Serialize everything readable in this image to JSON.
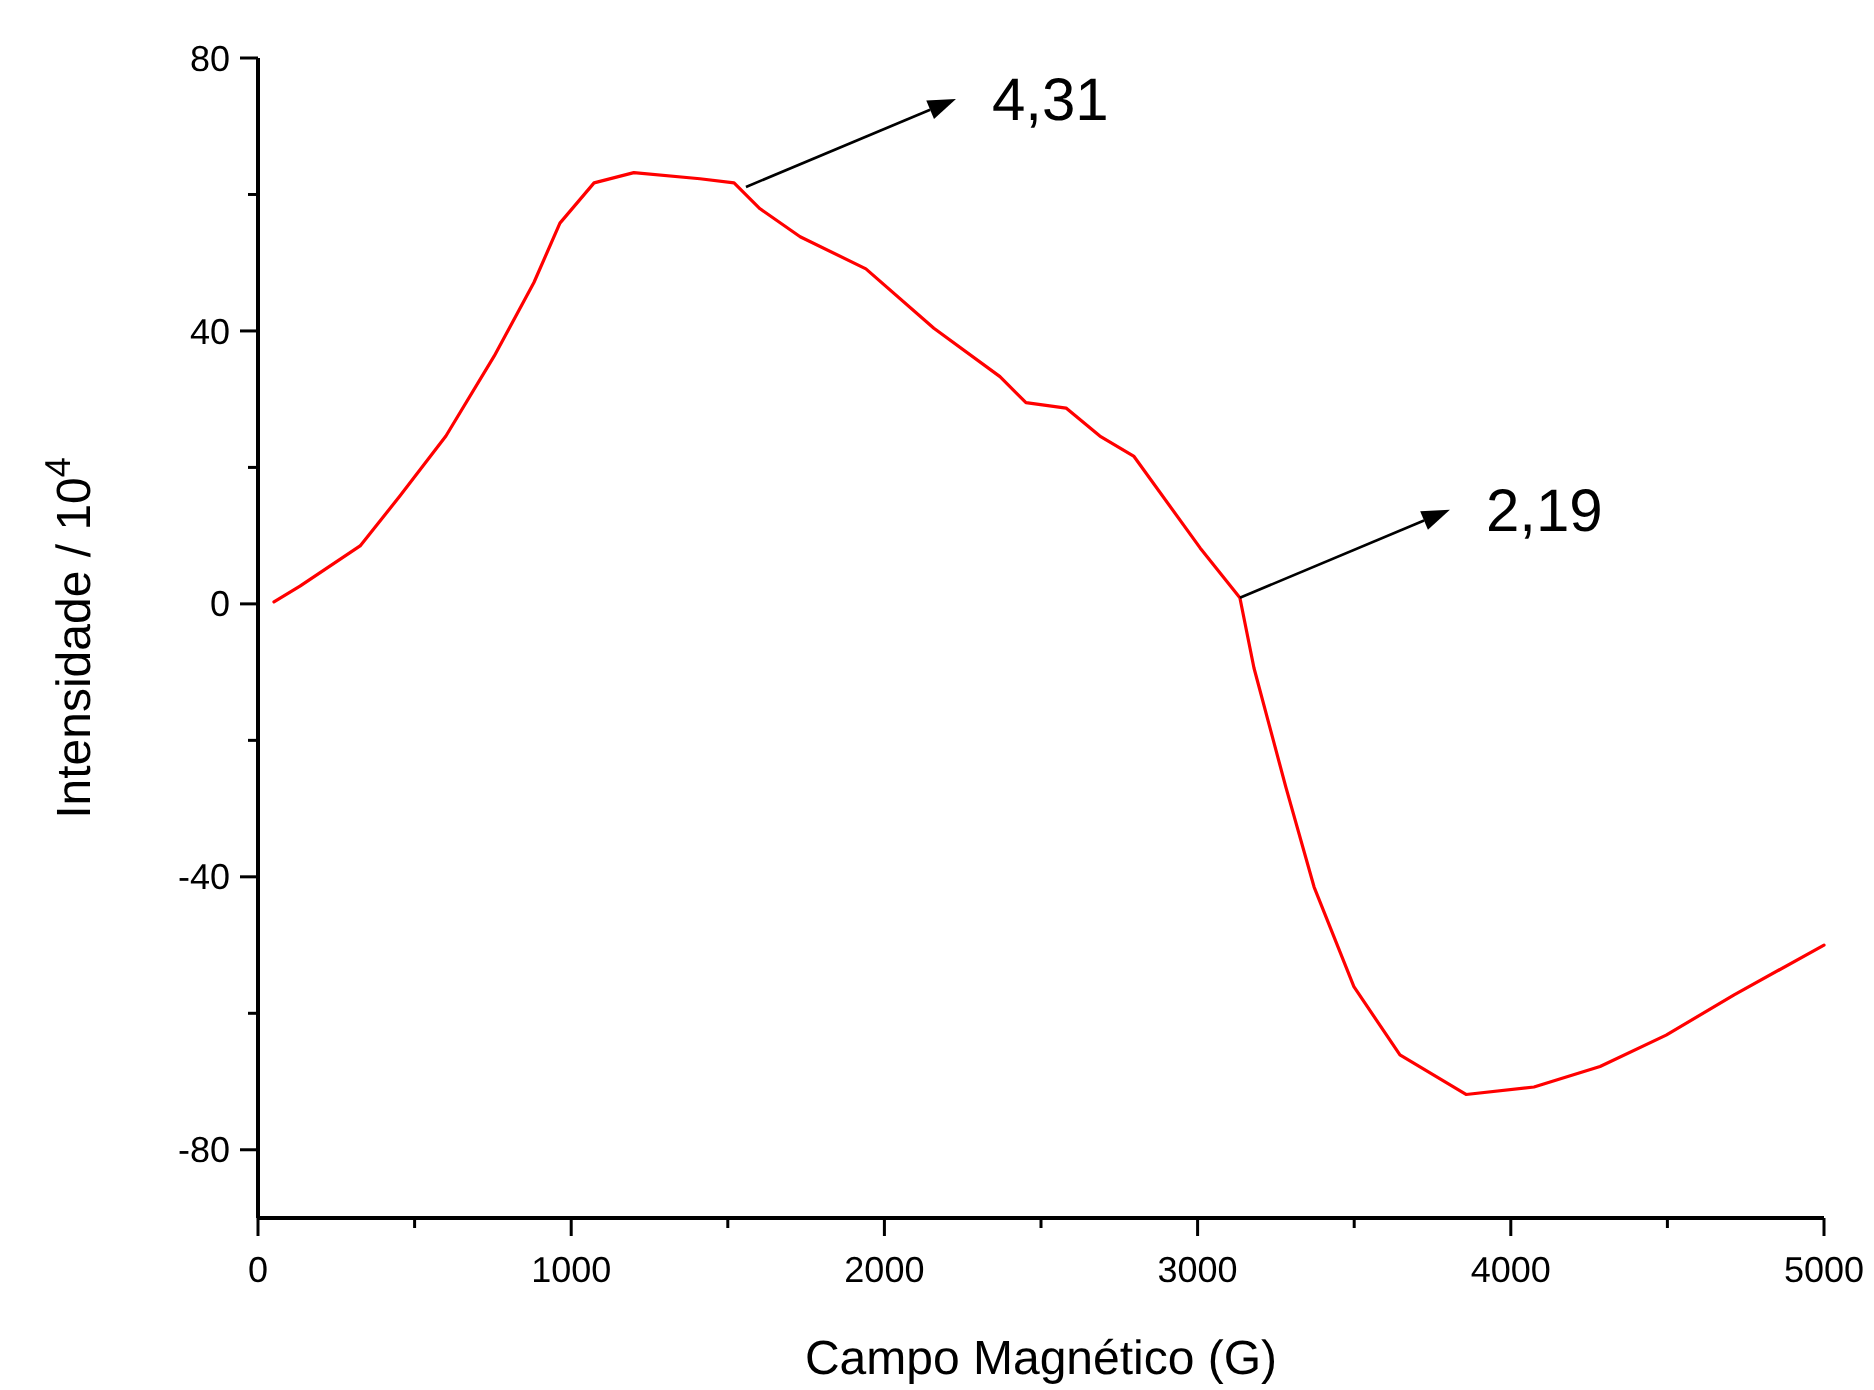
{
  "chart_data": {
    "type": "line",
    "xlabel": "Campo Magnético (G)",
    "ylabel": "Intensidade / 10$^{4}$",
    "xlim": [
      0,
      5000
    ],
    "xticks": [
      0,
      {
        "value": 500,
        "label": null
      },
      1000,
      {
        "value": 1500,
        "label": null
      },
      2000,
      {
        "value": 2500,
        "label": null
      },
      3000,
      {
        "value": 3500,
        "label": null
      },
      4000,
      {
        "value": 4500,
        "label": null
      },
      5000
    ],
    "ylim": [
      -90,
      80
    ],
    "yticks": [
      -80,
      {
        "value": -60,
        "label": null
      },
      -40,
      {
        "value": -20,
        "label": null
      },
      0,
      {
        "value": 20,
        "label": null
      },
      40,
      {
        "value": 60,
        "label": null
      },
      80
    ],
    "grid": false,
    "marker": "none",
    "line_style": "solid",
    "annotations": [
      {
        "text": "4,31",
        "x": 1558,
        "y": 61.1
      },
      {
        "text": "2,19",
        "x": 3135,
        "y": 0.9
      }
    ],
    "series": [
      {
        "color": "#ff0000",
        "x": [
          51,
          134,
          326,
          453,
          600,
          754,
          881,
          964,
          1073,
          1200,
          1411,
          1520,
          1603,
          1731,
          1941,
          2158,
          2369,
          2452,
          2580,
          2688,
          2797,
          3008,
          3135,
          3180,
          3282,
          3372,
          3499,
          3646,
          3857,
          4074,
          4285,
          4496,
          4713,
          5000
        ],
        "values": [
          0.3,
          2.6,
          8.5,
          15.8,
          24.6,
          36.3,
          47.1,
          55.8,
          61.7,
          63.2,
          62.3,
          61.7,
          57.9,
          53.8,
          49.1,
          40.4,
          33.3,
          29.5,
          28.7,
          24.6,
          21.6,
          8.2,
          0.9,
          -9.4,
          -26.9,
          -41.5,
          -56.1,
          -66.1,
          -71.9,
          -70.8,
          -67.8,
          -63.2,
          -57.3,
          -50.0
        ]
      }
    ]
  }
}
